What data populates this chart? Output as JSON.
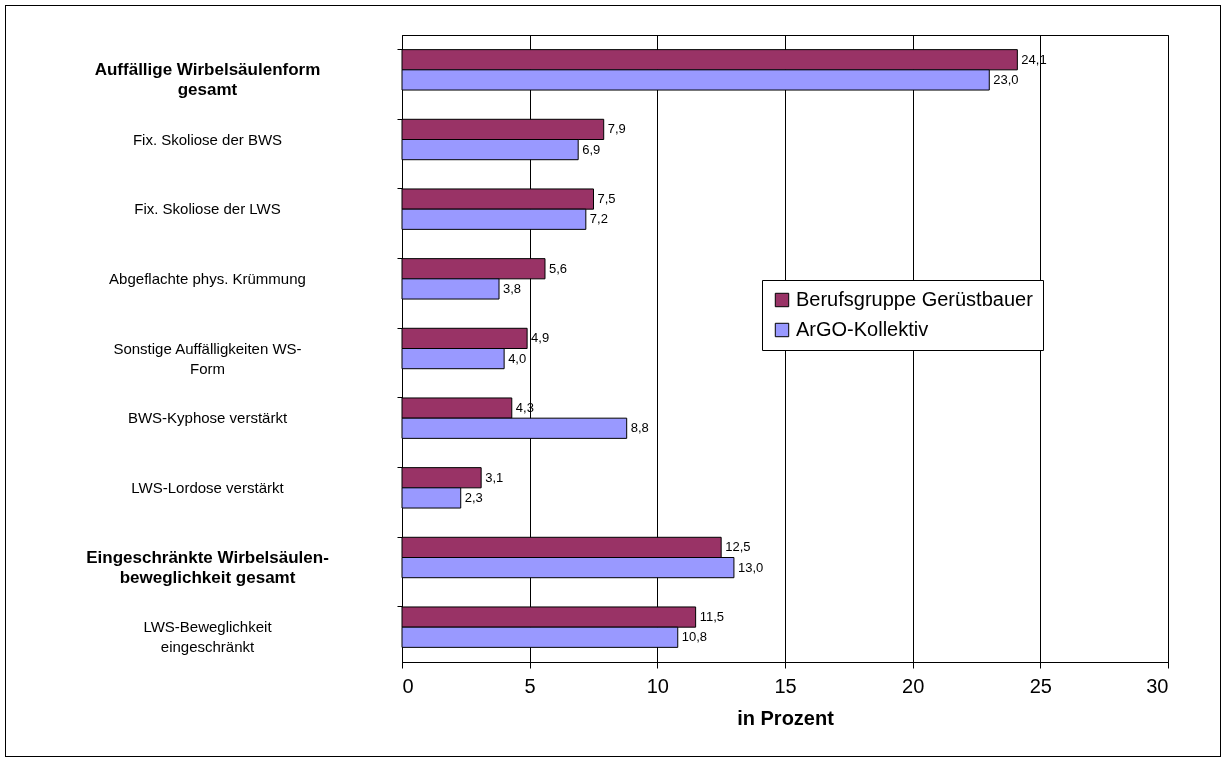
{
  "chart_data": {
    "type": "bar",
    "orientation": "horizontal",
    "xlabel": "in Prozent",
    "categories": [
      "Auffällige Wirbelsäulenform gesamt",
      "Fix. Skoliose der BWS",
      "Fix. Skoliose der LWS",
      "Abgeflachte phys. Krümmung",
      "Sonstige Auffälligkeiten WS-Form",
      "BWS-Kyphose verstärkt",
      "LWS-Lordose verstärkt",
      "Eingeschränkte Wirbelsäulen-beweglichkeit gesamt",
      "LWS-Beweglichkeit eingeschränkt"
    ],
    "series": [
      {
        "name": "Berufsgruppe Gerüstbauer",
        "color": "#993366",
        "values": [
          24.1,
          7.9,
          7.5,
          5.6,
          4.9,
          4.3,
          3.1,
          12.5,
          11.5
        ],
        "value_labels": [
          "24,1",
          "7,9",
          "7,5",
          "5,6",
          "4,9",
          "4,3",
          "3,1",
          "12,5",
          "11,5"
        ]
      },
      {
        "name": "ArGO-Kollektiv",
        "color": "#9999ff",
        "values": [
          23.0,
          6.9,
          7.2,
          3.8,
          4.0,
          8.8,
          2.3,
          13.0,
          10.8
        ],
        "value_labels": [
          "23,0",
          "6,9",
          "7,2",
          "3,8",
          "4,0",
          "8,8",
          "2,3",
          "13,0",
          "10,8"
        ]
      }
    ],
    "xlim": [
      0,
      30
    ],
    "xticks": [
      0,
      5,
      10,
      15,
      20,
      25,
      30
    ],
    "grid": "x",
    "legend": "right"
  }
}
